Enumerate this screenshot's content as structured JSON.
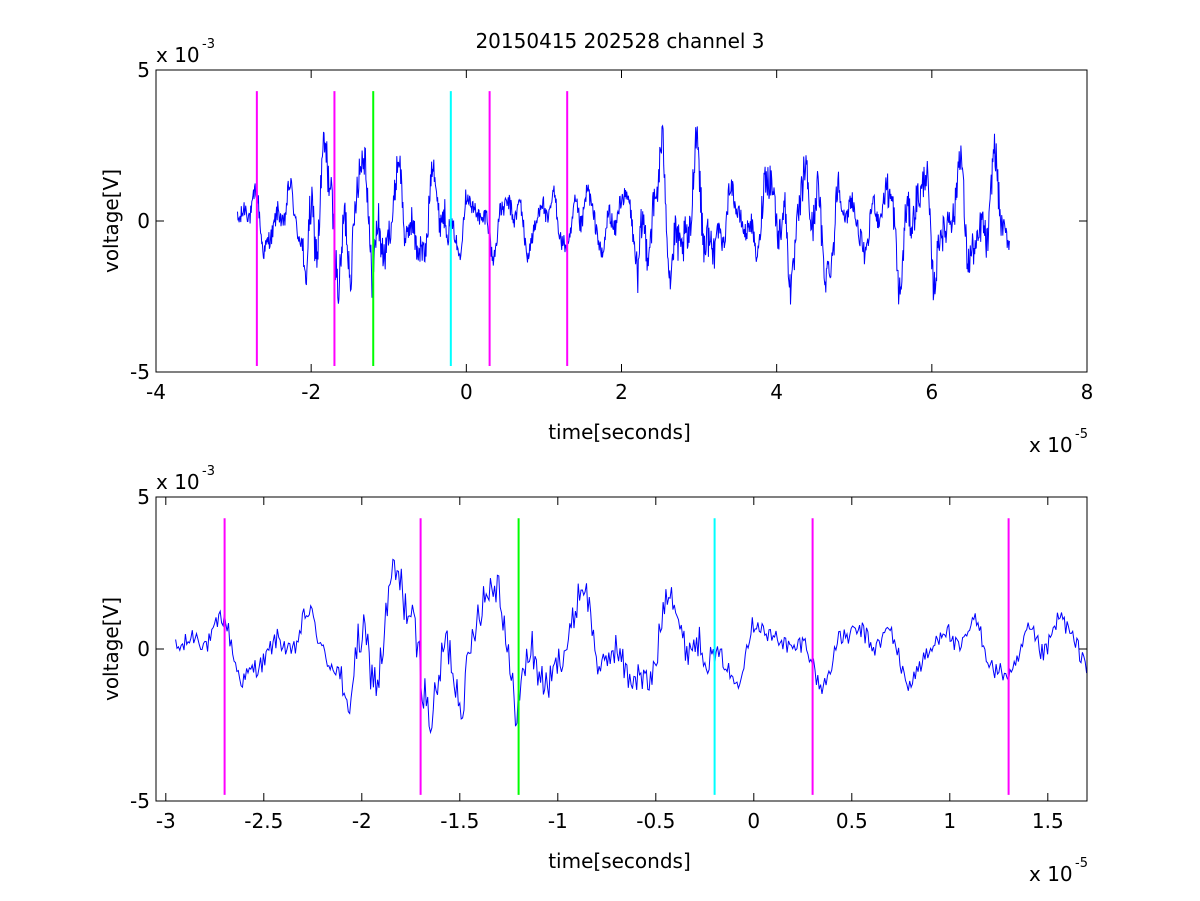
{
  "figure_title": "20150415 202528 channel 3",
  "colors": {
    "signal": "#0000ff",
    "magenta": "#ff00ff",
    "green": "#00ff00",
    "cyan": "#00ffff"
  },
  "chart_data": [
    {
      "type": "line",
      "title": "20150415 202528 channel 3",
      "xlabel": "time[seconds]",
      "ylabel": "voltage[V]",
      "x_multiplier": "x 10",
      "x_exponent": "-5",
      "y_multiplier": "x 10",
      "y_exponent": "-3",
      "xlim": [
        -4,
        8
      ],
      "ylim": [
        -5,
        5
      ],
      "xticks": [
        -4,
        -2,
        0,
        2,
        4,
        6,
        8
      ],
      "xtick_labels": [
        "-4",
        "-2",
        "0",
        "2",
        "4",
        "6",
        "8"
      ],
      "yticks": [
        -5,
        0,
        5
      ],
      "ytick_labels": [
        "-5",
        "0",
        "5"
      ],
      "grid": false,
      "signal_range": [
        -2.95,
        7.0
      ],
      "markers": [
        {
          "x": -2.7,
          "color": "#ff00ff"
        },
        {
          "x": -1.7,
          "color": "#ff00ff"
        },
        {
          "x": -1.2,
          "color": "#00ff00"
        },
        {
          "x": -0.2,
          "color": "#00ffff"
        },
        {
          "x": 0.3,
          "color": "#ff00ff"
        },
        {
          "x": 1.3,
          "color": "#ff00ff"
        }
      ],
      "marker_ylim": [
        -4.8,
        4.3
      ]
    },
    {
      "type": "line",
      "xlabel": "time[seconds]",
      "ylabel": "voltage[V]",
      "x_multiplier": "x 10",
      "x_exponent": "-5",
      "y_multiplier": "x 10",
      "y_exponent": "-3",
      "xlim": [
        -3.05,
        1.7
      ],
      "ylim": [
        -5,
        5
      ],
      "xticks": [
        -3,
        -2.5,
        -2,
        -1.5,
        -1,
        -0.5,
        0,
        0.5,
        1,
        1.5
      ],
      "xtick_labels": [
        "-3",
        "-2.5",
        "-2",
        "-1.5",
        "-1",
        "-0.5",
        "0",
        "0.5",
        "1",
        "1.5"
      ],
      "yticks": [
        -5,
        0,
        5
      ],
      "ytick_labels": [
        "-5",
        "0",
        "5"
      ],
      "grid": false,
      "signal_range": [
        -2.95,
        1.7
      ],
      "markers": [
        {
          "x": -2.7,
          "color": "#ff00ff"
        },
        {
          "x": -1.7,
          "color": "#ff00ff"
        },
        {
          "x": -1.2,
          "color": "#00ff00"
        },
        {
          "x": -0.2,
          "color": "#00ffff"
        },
        {
          "x": 0.3,
          "color": "#ff00ff"
        },
        {
          "x": 1.3,
          "color": "#ff00ff"
        }
      ],
      "marker_ylim": [
        -4.8,
        4.3
      ]
    }
  ]
}
